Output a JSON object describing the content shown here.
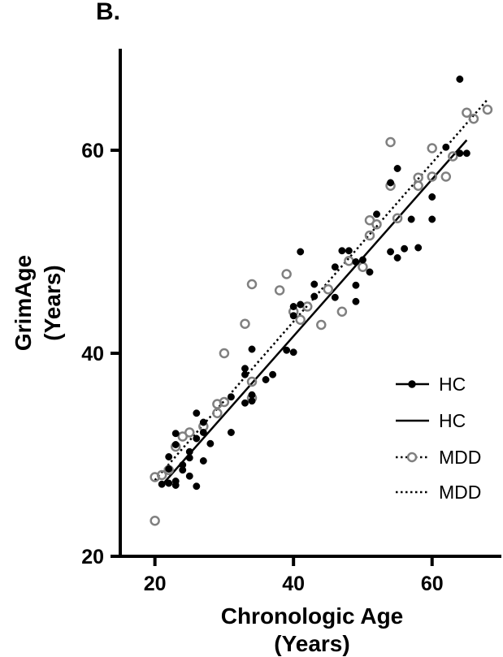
{
  "panel_label": "B.",
  "chart_data": {
    "type": "scatter",
    "title": "",
    "xlabel_lines": [
      "Chronologic Age",
      "(Years)"
    ],
    "ylabel_lines": [
      "GrimAge",
      "(Years)"
    ],
    "xlim": [
      15,
      70
    ],
    "ylim": [
      20,
      70
    ],
    "xticks": [
      20,
      40,
      60
    ],
    "yticks": [
      20,
      40,
      60
    ],
    "grid": false,
    "legend_position": "bottom-right",
    "legend": [
      {
        "label": "HC",
        "kind": "marker-line",
        "marker": "filled-circle",
        "line": "solid"
      },
      {
        "label": "HC",
        "kind": "line",
        "line": "solid"
      },
      {
        "label": "MDD",
        "kind": "marker-line",
        "marker": "open-circle",
        "line": "dotted"
      },
      {
        "label": "MDD",
        "kind": "line",
        "line": "dotted"
      }
    ],
    "colors": {
      "HC": "#000000",
      "MDD": "#808080"
    },
    "series": [
      {
        "name": "HC",
        "marker": "filled",
        "points": [
          [
            21,
            27.1
          ],
          [
            22,
            27.2
          ],
          [
            22,
            28.6
          ],
          [
            22,
            29.8
          ],
          [
            23,
            27.0
          ],
          [
            23,
            27.4
          ],
          [
            23,
            31.0
          ],
          [
            23,
            32.1
          ],
          [
            24,
            28.5
          ],
          [
            24,
            29.0
          ],
          [
            25,
            27.9
          ],
          [
            25,
            29.7
          ],
          [
            25,
            30.3
          ],
          [
            26,
            26.9
          ],
          [
            26,
            31.6
          ],
          [
            26,
            34.1
          ],
          [
            27,
            29.4
          ],
          [
            27,
            32.2
          ],
          [
            27,
            33.2
          ],
          [
            28,
            31.1
          ],
          [
            31,
            32.2
          ],
          [
            31,
            35.7
          ],
          [
            33,
            35.1
          ],
          [
            33,
            37.9
          ],
          [
            33,
            38.5
          ],
          [
            34,
            35.3
          ],
          [
            34,
            35.9
          ],
          [
            34,
            40.4
          ],
          [
            36,
            37.4
          ],
          [
            37,
            37.9
          ],
          [
            39,
            40.3
          ],
          [
            40,
            40.1
          ],
          [
            40,
            43.7
          ],
          [
            40,
            44.6
          ],
          [
            41,
            44.8
          ],
          [
            41,
            50.0
          ],
          [
            43,
            45.6
          ],
          [
            43,
            46.8
          ],
          [
            46,
            45.5
          ],
          [
            46,
            48.5
          ],
          [
            47,
            50.1
          ],
          [
            48,
            50.1
          ],
          [
            49,
            45.1
          ],
          [
            49,
            46.7
          ],
          [
            49,
            49.0
          ],
          [
            50,
            49.2
          ],
          [
            51,
            48.0
          ],
          [
            52,
            53.7
          ],
          [
            54,
            50.0
          ],
          [
            54,
            56.8
          ],
          [
            55,
            49.4
          ],
          [
            55,
            58.2
          ],
          [
            56,
            50.3
          ],
          [
            57,
            53.2
          ],
          [
            58,
            50.4
          ],
          [
            60,
            53.2
          ],
          [
            60,
            55.4
          ],
          [
            62,
            60.3
          ],
          [
            64,
            59.7
          ],
          [
            64,
            67.0
          ],
          [
            65,
            59.7
          ]
        ],
        "fit_line": {
          "from": [
            21,
            27.0
          ],
          "to": [
            65,
            61.0
          ]
        }
      },
      {
        "name": "MDD",
        "marker": "open",
        "points": [
          [
            20,
            23.5
          ],
          [
            20,
            27.8
          ],
          [
            21,
            28.0
          ],
          [
            22,
            28.5
          ],
          [
            23,
            30.8
          ],
          [
            24,
            31.8
          ],
          [
            25,
            32.2
          ],
          [
            27,
            32.8
          ],
          [
            29,
            34.1
          ],
          [
            29,
            35.0
          ],
          [
            30,
            35.2
          ],
          [
            30,
            40.0
          ],
          [
            34,
            35.6
          ],
          [
            34,
            37.2
          ],
          [
            33,
            42.9
          ],
          [
            34,
            46.8
          ],
          [
            38,
            46.2
          ],
          [
            39,
            47.8
          ],
          [
            40,
            44.1
          ],
          [
            41,
            43.3
          ],
          [
            42,
            44.6
          ],
          [
            44,
            42.8
          ],
          [
            45,
            46.3
          ],
          [
            47,
            44.1
          ],
          [
            48,
            49.1
          ],
          [
            50,
            48.5
          ],
          [
            51,
            51.6
          ],
          [
            51,
            53.1
          ],
          [
            52,
            52.7
          ],
          [
            54,
            60.8
          ],
          [
            54,
            56.5
          ],
          [
            55,
            53.3
          ],
          [
            58,
            56.5
          ],
          [
            58,
            57.3
          ],
          [
            60,
            57.4
          ],
          [
            60,
            60.2
          ],
          [
            62,
            57.4
          ],
          [
            63,
            59.4
          ],
          [
            65,
            63.7
          ],
          [
            66,
            63.1
          ],
          [
            68,
            64.0
          ]
        ],
        "fit_line": {
          "from": [
            20,
            27.5
          ],
          "to": [
            68,
            65.0
          ]
        }
      }
    ]
  }
}
